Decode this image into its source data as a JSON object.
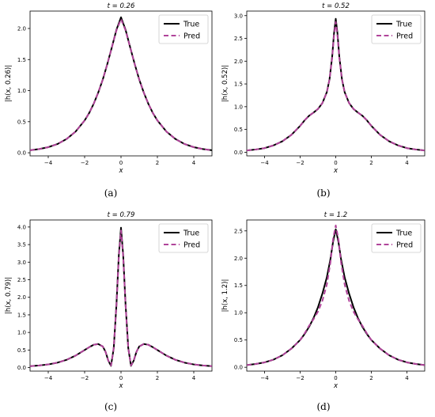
{
  "chart_data": [
    {
      "type": "line",
      "title": "t = 0.26",
      "xlabel": "x",
      "ylabel": "|h(x, 0.26)|",
      "caption": "(a)",
      "xlim": [
        -5,
        5
      ],
      "ylim": [
        -0.05,
        2.28
      ],
      "xticks": [
        -4,
        -2,
        0,
        2,
        4
      ],
      "yticks": [
        0.0,
        0.5,
        1.0,
        1.5,
        2.0
      ],
      "legend_position": "top-right",
      "grid": false,
      "x": [
        -5,
        -4.5,
        -4,
        -3.5,
        -3,
        -2.5,
        -2,
        -1.75,
        -1.5,
        -1.25,
        -1,
        -0.75,
        -0.5,
        -0.25,
        0,
        0.25,
        0.5,
        0.75,
        1,
        1.25,
        1.5,
        1.75,
        2,
        2.5,
        3,
        3.5,
        4,
        4.5,
        5
      ],
      "series": [
        {
          "name": "True",
          "color": "#000000",
          "style": "solid",
          "values": [
            0.04,
            0.06,
            0.09,
            0.14,
            0.22,
            0.34,
            0.52,
            0.64,
            0.79,
            0.97,
            1.18,
            1.43,
            1.7,
            1.98,
            2.18,
            1.98,
            1.7,
            1.43,
            1.18,
            0.97,
            0.79,
            0.64,
            0.52,
            0.34,
            0.22,
            0.14,
            0.09,
            0.06,
            0.04
          ]
        },
        {
          "name": "Pred",
          "color": "#b0449a",
          "style": "dashed",
          "values": [
            0.04,
            0.06,
            0.09,
            0.14,
            0.22,
            0.34,
            0.52,
            0.64,
            0.79,
            0.97,
            1.18,
            1.43,
            1.7,
            1.97,
            2.15,
            1.97,
            1.7,
            1.43,
            1.18,
            0.97,
            0.79,
            0.64,
            0.52,
            0.34,
            0.22,
            0.14,
            0.09,
            0.06,
            0.04
          ]
        }
      ]
    },
    {
      "type": "line",
      "title": "t = 0.52",
      "xlabel": "x",
      "ylabel": "|h(x, 0.52)|",
      "caption": "(b)",
      "xlim": [
        -5,
        5
      ],
      "ylim": [
        -0.08,
        3.1
      ],
      "xticks": [
        -4,
        -2,
        0,
        2,
        4
      ],
      "yticks": [
        0.0,
        0.5,
        1.0,
        1.5,
        2.0,
        2.5,
        3.0
      ],
      "legend_position": "top-right",
      "grid": false,
      "x": [
        -5,
        -4.5,
        -4,
        -3.5,
        -3,
        -2.5,
        -2,
        -1.75,
        -1.5,
        -1.25,
        -1,
        -0.75,
        -0.5,
        -0.35,
        -0.2,
        -0.1,
        0,
        0.1,
        0.2,
        0.35,
        0.5,
        0.75,
        1,
        1.25,
        1.5,
        1.75,
        2,
        2.5,
        3,
        3.5,
        4,
        4.5,
        5
      ],
      "series": [
        {
          "name": "True",
          "color": "#000000",
          "style": "solid",
          "values": [
            0.04,
            0.06,
            0.09,
            0.15,
            0.24,
            0.38,
            0.58,
            0.7,
            0.8,
            0.87,
            0.95,
            1.08,
            1.32,
            1.6,
            2.1,
            2.6,
            2.93,
            2.6,
            2.1,
            1.6,
            1.32,
            1.08,
            0.95,
            0.87,
            0.8,
            0.7,
            0.58,
            0.38,
            0.24,
            0.15,
            0.09,
            0.06,
            0.04
          ]
        },
        {
          "name": "Pred",
          "color": "#b0449a",
          "style": "dashed",
          "values": [
            0.04,
            0.06,
            0.09,
            0.15,
            0.24,
            0.38,
            0.58,
            0.7,
            0.8,
            0.87,
            0.95,
            1.08,
            1.32,
            1.6,
            2.08,
            2.55,
            2.86,
            2.55,
            2.08,
            1.6,
            1.32,
            1.08,
            0.95,
            0.87,
            0.8,
            0.7,
            0.58,
            0.38,
            0.24,
            0.15,
            0.09,
            0.06,
            0.04
          ]
        }
      ]
    },
    {
      "type": "line",
      "title": "t = 0.79",
      "xlabel": "x",
      "ylabel": "|h(x, 0.79)|",
      "caption": "(c)",
      "xlim": [
        -5,
        5
      ],
      "ylim": [
        -0.1,
        4.2
      ],
      "xticks": [
        -4,
        -2,
        0,
        2,
        4
      ],
      "yticks": [
        0.0,
        0.5,
        1.0,
        1.5,
        2.0,
        2.5,
        3.0,
        3.5,
        4.0
      ],
      "legend_position": "top-right",
      "grid": false,
      "x": [
        -5,
        -4.5,
        -4,
        -3.5,
        -3,
        -2.5,
        -2,
        -1.75,
        -1.5,
        -1.25,
        -1,
        -0.85,
        -0.7,
        -0.55,
        -0.4,
        -0.25,
        -0.12,
        0,
        0.12,
        0.25,
        0.4,
        0.55,
        0.7,
        0.85,
        1,
        1.25,
        1.5,
        1.75,
        2,
        2.5,
        3,
        3.5,
        4,
        4.5,
        5
      ],
      "series": [
        {
          "name": "True",
          "color": "#000000",
          "style": "solid",
          "values": [
            0.04,
            0.06,
            0.09,
            0.14,
            0.22,
            0.34,
            0.5,
            0.58,
            0.65,
            0.67,
            0.6,
            0.45,
            0.2,
            0.05,
            0.55,
            1.8,
            3.2,
            3.98,
            3.2,
            1.8,
            0.55,
            0.05,
            0.2,
            0.45,
            0.6,
            0.67,
            0.65,
            0.58,
            0.5,
            0.34,
            0.22,
            0.14,
            0.09,
            0.06,
            0.04
          ]
        },
        {
          "name": "Pred",
          "color": "#b0449a",
          "style": "dashed",
          "values": [
            0.04,
            0.06,
            0.09,
            0.14,
            0.22,
            0.34,
            0.5,
            0.58,
            0.65,
            0.67,
            0.6,
            0.45,
            0.2,
            0.06,
            0.55,
            1.78,
            3.15,
            3.9,
            3.15,
            1.78,
            0.55,
            0.06,
            0.2,
            0.45,
            0.6,
            0.67,
            0.65,
            0.58,
            0.5,
            0.34,
            0.22,
            0.14,
            0.09,
            0.06,
            0.04
          ]
        }
      ]
    },
    {
      "type": "line",
      "title": "t = 1.2",
      "xlabel": "x",
      "ylabel": "|h(x, 1.2)|",
      "caption": "(d)",
      "xlim": [
        -5,
        5
      ],
      "ylim": [
        -0.07,
        2.7
      ],
      "xticks": [
        -4,
        -2,
        0,
        2,
        4
      ],
      "yticks": [
        0.0,
        0.5,
        1.0,
        1.5,
        2.0,
        2.5
      ],
      "legend_position": "top-right",
      "grid": false,
      "x": [
        -5,
        -4.5,
        -4,
        -3.5,
        -3,
        -2.5,
        -2,
        -1.75,
        -1.5,
        -1.25,
        -1,
        -0.75,
        -0.5,
        -0.3,
        -0.15,
        0,
        0.15,
        0.3,
        0.5,
        0.75,
        1,
        1.25,
        1.5,
        1.75,
        2,
        2.5,
        3,
        3.5,
        4,
        4.5,
        5
      ],
      "series": [
        {
          "name": "True",
          "color": "#000000",
          "style": "solid",
          "values": [
            0.04,
            0.06,
            0.09,
            0.14,
            0.22,
            0.34,
            0.5,
            0.61,
            0.74,
            0.9,
            1.1,
            1.35,
            1.65,
            1.98,
            2.3,
            2.53,
            2.3,
            1.98,
            1.65,
            1.35,
            1.1,
            0.9,
            0.74,
            0.61,
            0.5,
            0.34,
            0.22,
            0.14,
            0.09,
            0.06,
            0.04
          ]
        },
        {
          "name": "Pred",
          "color": "#b0449a",
          "style": "dashed",
          "values": [
            0.04,
            0.06,
            0.09,
            0.14,
            0.22,
            0.34,
            0.5,
            0.62,
            0.76,
            0.88,
            1.02,
            1.22,
            1.52,
            1.92,
            2.35,
            2.6,
            2.35,
            1.92,
            1.52,
            1.22,
            1.02,
            0.88,
            0.76,
            0.62,
            0.5,
            0.34,
            0.22,
            0.14,
            0.09,
            0.06,
            0.04
          ]
        }
      ]
    }
  ]
}
